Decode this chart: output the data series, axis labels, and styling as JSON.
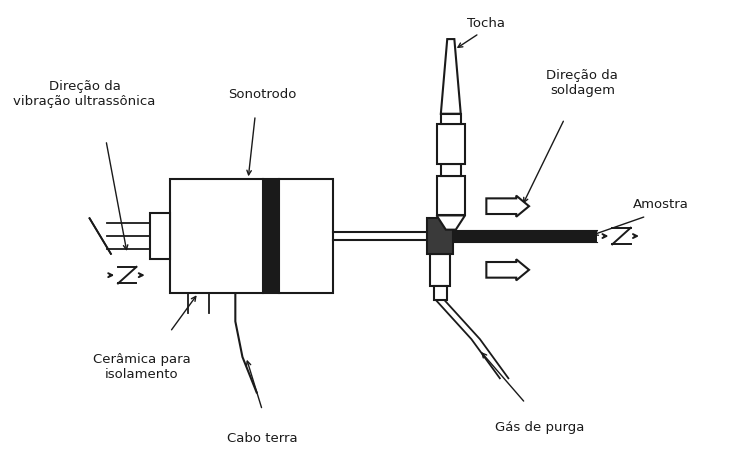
{
  "figsize": [
    7.29,
    4.65
  ],
  "dpi": 100,
  "bg_color": "#ffffff",
  "text_color": "#1a1a1a",
  "line_color": "#1a1a1a",
  "label_fontsize": 9.5,
  "xlim": [
    0,
    10
  ],
  "ylim": [
    0,
    6.5
  ],
  "labels": {
    "tocha": "Tocha",
    "sonotrodo": "Sonotrodo",
    "direcao_vibracao": "Direção da\nvibração ultrassônica",
    "direcao_soldagem": "Direção da\nsoldagem",
    "amostra": "Amostra",
    "ceramica": "Cerâmica para\nisolamento",
    "cabo_terra": "Cabo terra",
    "gas_purga": "Gás de purga"
  }
}
